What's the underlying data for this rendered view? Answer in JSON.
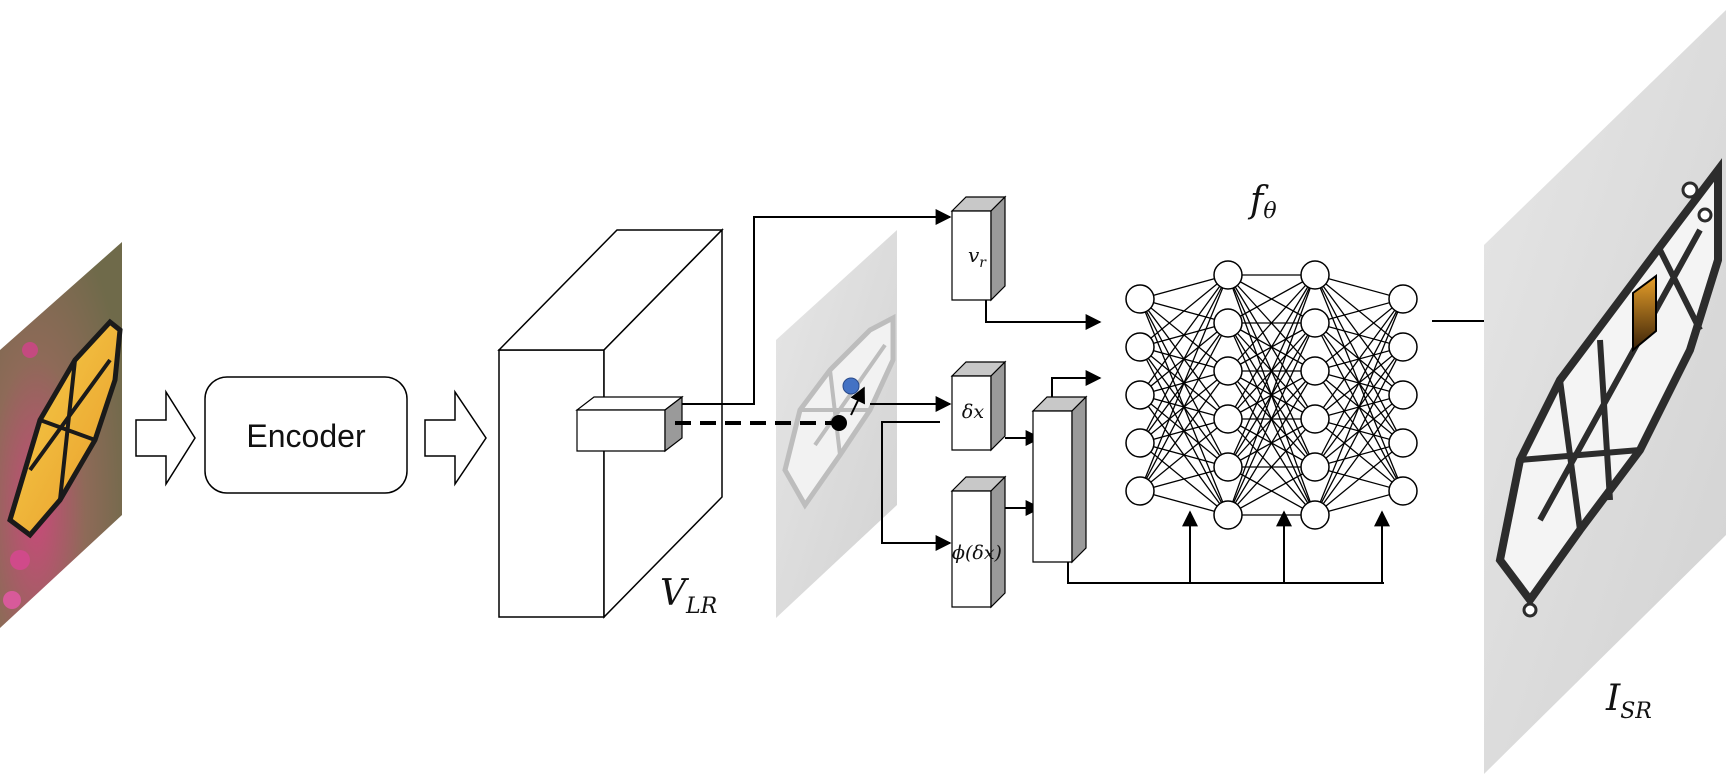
{
  "encoder": {
    "label": "Encoder"
  },
  "feature_volume": {
    "main": "V",
    "sub": "LR"
  },
  "output_image": {
    "main": "I",
    "sub": "SR"
  },
  "mlp": {
    "main": "f",
    "sub": "θ",
    "layers": [
      5,
      6,
      6,
      5
    ]
  },
  "inputs": {
    "vr": {
      "main": "v",
      "sub": "r"
    },
    "dx": {
      "label": "δx"
    },
    "phi": {
      "label": "ϕ(δx)"
    }
  },
  "colors": {
    "stroke": "#000000",
    "box_top": "#c8c8c8",
    "box_side": "#9a9a9a",
    "query_point": "#4472c4",
    "pixel_dot": "#000000"
  },
  "icons": [
    "butterfly-input-image",
    "butterfly-grayscale-image",
    "butterfly-output-image",
    "output-pixel-patch"
  ]
}
